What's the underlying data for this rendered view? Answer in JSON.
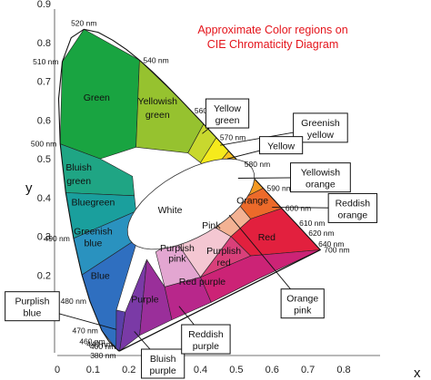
{
  "chart_data": {
    "type": "diagram",
    "title": [
      "Approximate Color regions on",
      "CIE Chromaticity Diagram"
    ],
    "xlabel": "x",
    "ylabel": "y",
    "xlim": [
      0,
      0.8
    ],
    "ylim": [
      0,
      0.9
    ],
    "x_ticks": [
      "0",
      "0.1",
      "0.2",
      "0.3",
      "0.4",
      "0.5",
      "0.6",
      "0.7",
      "0.8"
    ],
    "y_ticks": [
      "0.1",
      "0.2",
      "0.3",
      "0.4",
      "0.5",
      "0.6",
      "0.7",
      "0.8",
      "0.9"
    ],
    "locus": [
      {
        "x": 0.1741,
        "y": 0.005
      },
      {
        "x": 0.1738,
        "y": 0.0049
      },
      {
        "x": 0.173,
        "y": 0.0048
      },
      {
        "x": 0.1714,
        "y": 0.0051
      },
      {
        "x": 0.1689,
        "y": 0.0069
      },
      {
        "x": 0.1644,
        "y": 0.0109
      },
      {
        "x": 0.1566,
        "y": 0.0177
      },
      {
        "x": 0.144,
        "y": 0.0297
      },
      {
        "x": 0.1241,
        "y": 0.0578
      },
      {
        "x": 0.0913,
        "y": 0.1327
      },
      {
        "x": 0.0687,
        "y": 0.2007
      },
      {
        "x": 0.0454,
        "y": 0.295
      },
      {
        "x": 0.0235,
        "y": 0.4127
      },
      {
        "x": 0.0082,
        "y": 0.5384
      },
      {
        "x": 0.0039,
        "y": 0.6548
      },
      {
        "x": 0.0139,
        "y": 0.7502
      },
      {
        "x": 0.0389,
        "y": 0.812
      },
      {
        "x": 0.0743,
        "y": 0.8338
      },
      {
        "x": 0.1142,
        "y": 0.8262
      },
      {
        "x": 0.1547,
        "y": 0.8059
      },
      {
        "x": 0.1929,
        "y": 0.7816
      },
      {
        "x": 0.2296,
        "y": 0.7543
      },
      {
        "x": 0.2658,
        "y": 0.7243
      },
      {
        "x": 0.3016,
        "y": 0.6923
      },
      {
        "x": 0.3373,
        "y": 0.6589
      },
      {
        "x": 0.3731,
        "y": 0.6245
      },
      {
        "x": 0.4087,
        "y": 0.5896
      },
      {
        "x": 0.4441,
        "y": 0.5547
      },
      {
        "x": 0.4788,
        "y": 0.5202
      },
      {
        "x": 0.5125,
        "y": 0.4866
      },
      {
        "x": 0.5448,
        "y": 0.4544
      },
      {
        "x": 0.5752,
        "y": 0.4242
      },
      {
        "x": 0.6029,
        "y": 0.3965
      },
      {
        "x": 0.627,
        "y": 0.3725
      },
      {
        "x": 0.6482,
        "y": 0.3514
      },
      {
        "x": 0.6658,
        "y": 0.334
      },
      {
        "x": 0.6801,
        "y": 0.3197
      },
      {
        "x": 0.6915,
        "y": 0.3083
      },
      {
        "x": 0.7006,
        "y": 0.2993
      },
      {
        "x": 0.7347,
        "y": 0.2653
      }
    ],
    "wavelength_labels": [
      {
        "label": "380 nm",
        "x": 0.1741,
        "y": 0.005
      },
      {
        "label": "400 nm",
        "x": 0.1733,
        "y": 0.0048
      },
      {
        "label": "440 nm",
        "x": 0.1644,
        "y": 0.0109
      },
      {
        "label": "460 nm",
        "x": 0.144,
        "y": 0.0297
      },
      {
        "label": "470 nm",
        "x": 0.1241,
        "y": 0.0578
      },
      {
        "label": "480 nm",
        "x": 0.0913,
        "y": 0.1327
      },
      {
        "label": "490 nm",
        "x": 0.0454,
        "y": 0.295
      },
      {
        "label": "500 nm",
        "x": 0.0082,
        "y": 0.5384
      },
      {
        "label": "510 nm",
        "x": 0.0139,
        "y": 0.7502
      },
      {
        "label": "520 nm",
        "x": 0.0743,
        "y": 0.8338
      },
      {
        "label": "540 nm",
        "x": 0.2296,
        "y": 0.7543
      },
      {
        "label": "560 nm",
        "x": 0.3731,
        "y": 0.6245
      },
      {
        "label": "570 nm",
        "x": 0.4441,
        "y": 0.5547
      },
      {
        "label": "580 nm",
        "x": 0.5125,
        "y": 0.4866
      },
      {
        "label": "590 nm",
        "x": 0.5752,
        "y": 0.4242
      },
      {
        "label": "600 nm",
        "x": 0.627,
        "y": 0.3725
      },
      {
        "label": "610 nm",
        "x": 0.6658,
        "y": 0.334
      },
      {
        "label": "620 nm",
        "x": 0.6915,
        "y": 0.3083
      },
      {
        "label": "640 nm",
        "x": 0.719,
        "y": 0.2809
      },
      {
        "label": "700 nm",
        "x": 0.7347,
        "y": 0.2653
      }
    ],
    "white_point": {
      "x": 0.3333,
      "y": 0.3333
    },
    "regions": [
      {
        "name": "Green",
        "label": "Green",
        "color": "#19a441",
        "verts": [
          [
            0.0743,
            0.8338
          ],
          [
            0.2296,
            0.7543
          ],
          [
            0.22,
            0.53
          ],
          [
            0.12,
            0.5
          ],
          [
            0.0082,
            0.5384
          ],
          [
            0.0139,
            0.7502
          ]
        ]
      },
      {
        "name": "Yellowish green",
        "label": "Yellowish green",
        "color": "#96c22f",
        "verts": [
          [
            0.2296,
            0.7543
          ],
          [
            0.3373,
            0.6589
          ],
          [
            0.4087,
            0.5896
          ],
          [
            0.365,
            0.515
          ],
          [
            0.22,
            0.53
          ]
        ]
      },
      {
        "name": "Yellow green",
        "label": "",
        "color": "#c8d82e",
        "verts": [
          [
            0.4087,
            0.5896
          ],
          [
            0.4441,
            0.5547
          ],
          [
            0.4,
            0.49
          ],
          [
            0.365,
            0.515
          ]
        ]
      },
      {
        "name": "Yellow",
        "label": "",
        "color": "#f6ea1c",
        "verts": [
          [
            0.4441,
            0.5547
          ],
          [
            0.4788,
            0.5202
          ],
          [
            0.43,
            0.465
          ],
          [
            0.4,
            0.49
          ]
        ]
      },
      {
        "name": "Yellowish orange",
        "label": "",
        "color": "#f9c222",
        "verts": [
          [
            0.4788,
            0.5202
          ],
          [
            0.5125,
            0.4866
          ],
          [
            0.45,
            0.445
          ],
          [
            0.43,
            0.465
          ]
        ]
      },
      {
        "name": "Orange",
        "label": "Orange",
        "color": "#f59a23",
        "verts": [
          [
            0.5125,
            0.4866
          ],
          [
            0.5752,
            0.4242
          ],
          [
            0.5,
            0.39
          ],
          [
            0.45,
            0.445
          ]
        ]
      },
      {
        "name": "Reddish orange",
        "label": "",
        "color": "#ec6a2a",
        "verts": [
          [
            0.5752,
            0.4242
          ],
          [
            0.627,
            0.3725
          ],
          [
            0.54,
            0.345
          ],
          [
            0.5,
            0.39
          ]
        ]
      },
      {
        "name": "Red",
        "label": "Red",
        "color": "#e2203e",
        "verts": [
          [
            0.627,
            0.3725
          ],
          [
            0.7347,
            0.2653
          ],
          [
            0.54,
            0.25
          ],
          [
            0.485,
            0.3
          ],
          [
            0.54,
            0.345
          ]
        ]
      },
      {
        "name": "Bluish green",
        "label": "Bluish green",
        "color": "#1fa584",
        "verts": [
          [
            0.0082,
            0.5384
          ],
          [
            0.12,
            0.5
          ],
          [
            0.21,
            0.455
          ],
          [
            0.215,
            0.405
          ],
          [
            0.0235,
            0.4127
          ]
        ]
      },
      {
        "name": "Bluegreen",
        "label": "Bluegreen",
        "color": "#1a9f9d",
        "verts": [
          [
            0.0235,
            0.4127
          ],
          [
            0.215,
            0.405
          ],
          [
            0.22,
            0.365
          ],
          [
            0.0454,
            0.295
          ]
        ]
      },
      {
        "name": "Greenish blue",
        "label": "Greenish blue",
        "color": "#2a92bf",
        "verts": [
          [
            0.0454,
            0.295
          ],
          [
            0.22,
            0.365
          ],
          [
            0.225,
            0.295
          ],
          [
            0.0687,
            0.2007
          ]
        ]
      },
      {
        "name": "Blue",
        "label": "Blue",
        "color": "#2f6fc0",
        "verts": [
          [
            0.0687,
            0.2007
          ],
          [
            0.225,
            0.295
          ],
          [
            0.165,
            0.11
          ],
          [
            0.1644,
            0.0109
          ],
          [
            0.1241,
            0.0578
          ],
          [
            0.0913,
            0.1327
          ]
        ]
      },
      {
        "name": "Purplish blue",
        "label": "",
        "color": "#5b3fa8",
        "verts": [
          [
            0.1644,
            0.0109
          ],
          [
            0.165,
            0.11
          ],
          [
            0.19,
            0.105
          ],
          [
            0.1741,
            0.005
          ]
        ]
      },
      {
        "name": "Bluish purple",
        "label": "",
        "color": "#7a3aa6",
        "verts": [
          [
            0.1741,
            0.005
          ],
          [
            0.19,
            0.105
          ],
          [
            0.25,
            0.24
          ],
          [
            0.23,
            0.045
          ]
        ]
      },
      {
        "name": "Purple",
        "label": "Purple",
        "color": "#9a2f9a",
        "verts": [
          [
            0.23,
            0.045
          ],
          [
            0.25,
            0.24
          ],
          [
            0.3,
            0.17
          ],
          [
            0.32,
            0.085
          ]
        ]
      },
      {
        "name": "Reddish purple",
        "label": "",
        "color": "#b8278b",
        "verts": [
          [
            0.32,
            0.085
          ],
          [
            0.3,
            0.17
          ],
          [
            0.4,
            0.195
          ],
          [
            0.43,
            0.13
          ]
        ]
      },
      {
        "name": "Red purple",
        "label": "Red purple",
        "color": "#cc2376",
        "verts": [
          [
            0.43,
            0.13
          ],
          [
            0.4,
            0.195
          ],
          [
            0.54,
            0.25
          ],
          [
            0.7347,
            0.2653
          ],
          [
            0.56,
            0.19
          ]
        ]
      },
      {
        "name": "Purplish red",
        "label": "Purplish red",
        "color": "#d9407a",
        "verts": [
          [
            0.4,
            0.195
          ],
          [
            0.485,
            0.3
          ],
          [
            0.54,
            0.25
          ]
        ]
      },
      {
        "name": "Purplish pink",
        "label": "Purplish pink",
        "color": "#e3a6d1",
        "verts": [
          [
            0.3,
            0.17
          ],
          [
            0.275,
            0.26
          ],
          [
            0.33,
            0.29
          ],
          [
            0.4,
            0.195
          ]
        ]
      },
      {
        "name": "Pink",
        "label": "Pink",
        "color": "#f4c7d2",
        "verts": [
          [
            0.33,
            0.29
          ],
          [
            0.38,
            0.355
          ],
          [
            0.485,
            0.3
          ],
          [
            0.4,
            0.195
          ]
        ]
      },
      {
        "name": "Orange pink",
        "label": "",
        "color": "#f3b293",
        "verts": [
          [
            0.38,
            0.355
          ],
          [
            0.44,
            0.4
          ],
          [
            0.5,
            0.39
          ],
          [
            0.54,
            0.345
          ],
          [
            0.485,
            0.3
          ]
        ]
      }
    ],
    "region_labels": [
      {
        "text": "Green",
        "x": 0.11,
        "y": 0.65
      },
      {
        "text": "Yellowish",
        "x": 0.28,
        "y": 0.64
      },
      {
        "text": "green",
        "x": 0.28,
        "y": 0.605
      },
      {
        "text": "Bluish",
        "x": 0.06,
        "y": 0.47
      },
      {
        "text": "green",
        "x": 0.06,
        "y": 0.435
      },
      {
        "text": "Bluegreen",
        "x": 0.1,
        "y": 0.38
      },
      {
        "text": "Greenish",
        "x": 0.1,
        "y": 0.305
      },
      {
        "text": "blue",
        "x": 0.1,
        "y": 0.275
      },
      {
        "text": "Blue",
        "x": 0.12,
        "y": 0.19
      },
      {
        "text": "White",
        "x": 0.315,
        "y": 0.36
      },
      {
        "text": "Pink",
        "x": 0.43,
        "y": 0.32
      },
      {
        "text": "Purplish",
        "x": 0.335,
        "y": 0.262
      },
      {
        "text": "pink",
        "x": 0.335,
        "y": 0.235
      },
      {
        "text": "Purplish",
        "x": 0.465,
        "y": 0.255
      },
      {
        "text": "red",
        "x": 0.465,
        "y": 0.225
      },
      {
        "text": "Red",
        "x": 0.585,
        "y": 0.29
      },
      {
        "text": "Red purple",
        "x": 0.405,
        "y": 0.175
      },
      {
        "text": "Purple",
        "x": 0.245,
        "y": 0.13
      },
      {
        "text": "Orange",
        "x": 0.545,
        "y": 0.385
      }
    ],
    "callouts": [
      {
        "lines": [
          "Yellow",
          "green"
        ],
        "box_x": 0.475,
        "box_y": 0.617,
        "tx": 0.405,
        "ty": 0.565
      },
      {
        "lines": [
          "Greenish",
          "yellow"
        ],
        "box_x": 0.735,
        "box_y": 0.58,
        "tx": 0.455,
        "ty": 0.535
      },
      {
        "lines": [
          "Yellow"
        ],
        "box_x": 0.625,
        "box_y": 0.535,
        "tx": 0.475,
        "ty": 0.5
      },
      {
        "lines": [
          "Yellowish",
          "orange"
        ],
        "box_x": 0.735,
        "box_y": 0.452,
        "tx": 0.505,
        "ty": 0.45
      },
      {
        "lines": [
          "Reddish",
          "orange"
        ],
        "box_x": 0.825,
        "box_y": 0.373,
        "tx": 0.6,
        "ty": 0.375
      },
      {
        "lines": [
          "Orange",
          "pink"
        ],
        "box_x": 0.685,
        "box_y": 0.127,
        "tx": 0.48,
        "ty": 0.355
      },
      {
        "lines": [
          "Purplish",
          "blue"
        ],
        "box_x": -0.07,
        "box_y": 0.12,
        "tx": 0.165,
        "ty": 0.06
      },
      {
        "lines": [
          "Bluish",
          "purple"
        ],
        "box_x": 0.295,
        "box_y": -0.045,
        "tx": 0.215,
        "ty": 0.055
      },
      {
        "lines": [
          "Reddish",
          "purple"
        ],
        "box_x": 0.415,
        "box_y": 0.035,
        "tx": 0.34,
        "ty": 0.12
      }
    ]
  }
}
